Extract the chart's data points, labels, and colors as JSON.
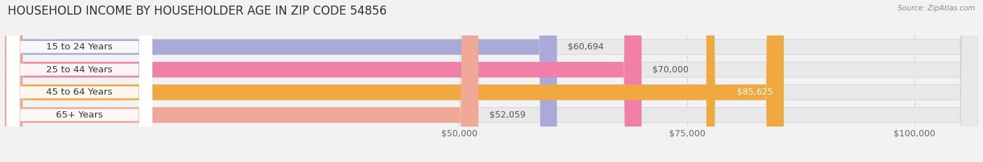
{
  "title": "HOUSEHOLD INCOME BY HOUSEHOLDER AGE IN ZIP CODE 54856",
  "source": "Source: ZipAtlas.com",
  "categories": [
    "15 to 24 Years",
    "25 to 44 Years",
    "45 to 64 Years",
    "65+ Years"
  ],
  "values": [
    60694,
    70000,
    85625,
    52059
  ],
  "bar_colors": [
    "#aaaad8",
    "#f080a8",
    "#f0a840",
    "#f0a898"
  ],
  "bar_labels": [
    "$60,694",
    "$70,000",
    "$85,625",
    "$52,059"
  ],
  "label_color_inside": "#ffffff",
  "label_color_outside": "#555555",
  "xticks": [
    50000,
    75000,
    100000
  ],
  "xticklabels": [
    "$50,000",
    "$75,000",
    "$100,000"
  ],
  "xlim_min": 0,
  "xlim_max": 107000,
  "background_color": "#f2f2f2",
  "bar_background_color": "#e8e8e8",
  "label_pill_color": "#ffffff",
  "grid_color": "#d8d8d8",
  "title_fontsize": 12,
  "tick_fontsize": 9,
  "label_fontsize": 9,
  "category_fontsize": 9.5
}
